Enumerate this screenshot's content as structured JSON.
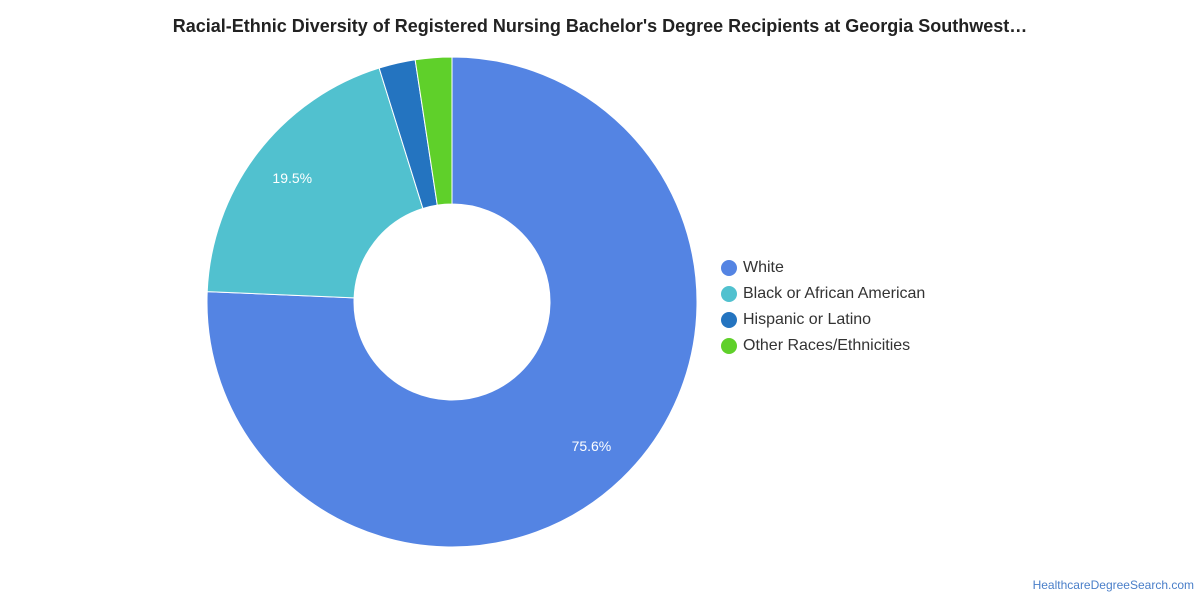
{
  "title": "Racial-Ethnic Diversity of Registered Nursing Bachelor's Degree Recipients at Georgia Southwest…",
  "source": "HealthcareDegreeSearch.com",
  "chart_data": {
    "type": "pie",
    "donut": true,
    "title": "Racial-Ethnic Diversity of Registered Nursing Bachelor's Degree Recipients at Georgia Southwest…",
    "legend_position": "right",
    "slices": [
      {
        "name": "White",
        "value": 75.6,
        "color": "#5484e3",
        "label": "75.6%"
      },
      {
        "name": "Black or African American",
        "value": 19.5,
        "color": "#51c1cf",
        "label": "19.5%"
      },
      {
        "name": "Hispanic or Latino",
        "value": 2.4,
        "color": "#2474c0",
        "label": ""
      },
      {
        "name": "Other Races/Ethnicities",
        "value": 2.4,
        "color": "#5fd02a",
        "label": ""
      }
    ]
  }
}
